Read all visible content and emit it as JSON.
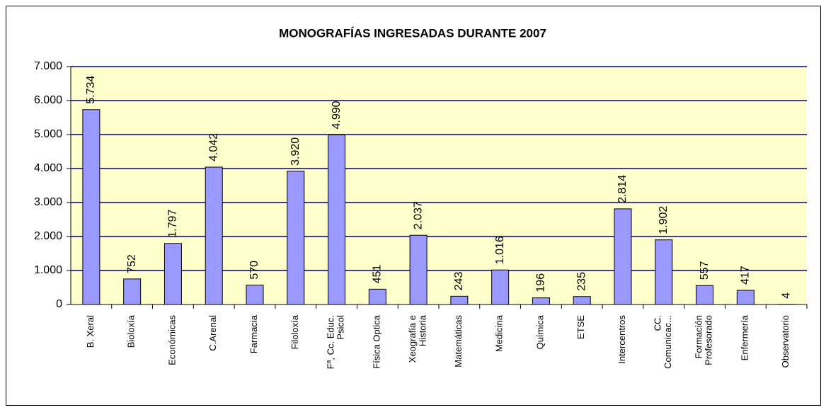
{
  "chart_data": {
    "type": "bar",
    "title": "MONOGRAFÍAS INGRESADAS DURANTE 2007",
    "categories": [
      "B. Xeral",
      "Bioloxía",
      "Económicas",
      "C.Arenal",
      "Farmacia",
      "Filoloxía",
      "Fª, Cc. Educ.\nPsicol",
      "Física Optica",
      "Xeografía e\nHistoria",
      "Matemáticas",
      "Medicina",
      "Química",
      "ETSE",
      "Intercentros",
      "CC.\nComunicac...",
      "Formación\nProfesorado",
      "Enfermería",
      "Observatorio"
    ],
    "values": [
      5734,
      752,
      1797,
      4042,
      570,
      3920,
      4990,
      451,
      2037,
      243,
      1016,
      196,
      235,
      2814,
      1902,
      557,
      417,
      4
    ],
    "value_labels": [
      "5.734",
      "752",
      "1.797",
      "4.042",
      "570",
      "3.920",
      "4.990",
      "451",
      "2.037",
      "243",
      "1.016",
      "196",
      "235",
      "2.814",
      "1.902",
      "557",
      "417",
      "4"
    ],
    "color": "#9999ff",
    "plot_background": "#ffffcc",
    "grid_color": "#000080",
    "ylim": [
      0,
      7000
    ],
    "yticks": [
      0,
      {
        "value": 1000,
        "label": "1.000"
      },
      {
        "value": 2000,
        "label": "2.000"
      },
      {
        "value": 3000,
        "label": "3.000"
      },
      {
        "value": 4000,
        "label": "4.000"
      },
      {
        "value": 5000,
        "label": "5.000"
      },
      {
        "value": 6000,
        "label": "6.000"
      },
      {
        "value": 7000,
        "label": "7.000"
      }
    ],
    "grid": true
  }
}
